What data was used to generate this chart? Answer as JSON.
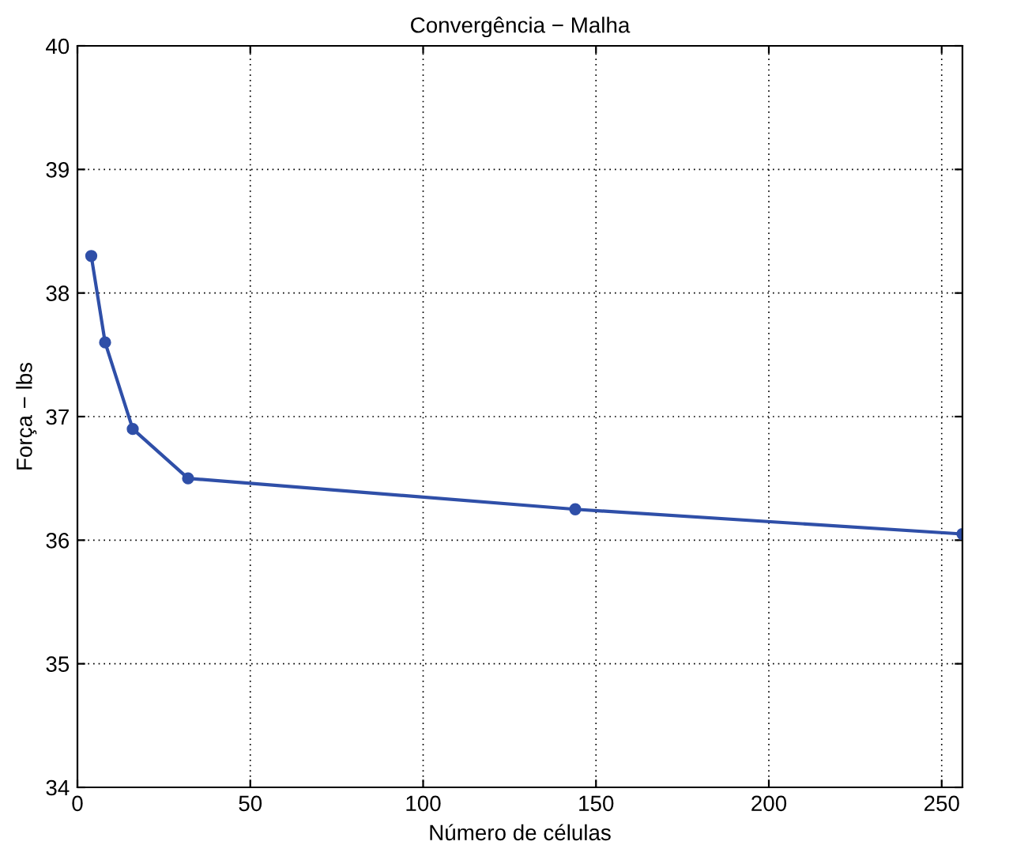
{
  "chart_data": {
    "type": "line",
    "title": "Convergência − Malha",
    "xlabel": "Número de células",
    "ylabel": "Força − lbs",
    "x": [
      4,
      8,
      16,
      32,
      144,
      256
    ],
    "series": [
      {
        "color": "#2f4fa8",
        "values": [
          38.3,
          37.6,
          36.9,
          36.5,
          36.25,
          36.05
        ]
      }
    ],
    "xlim": [
      0,
      256
    ],
    "xticks": [
      0,
      50,
      100,
      150,
      200,
      250
    ],
    "ylim": [
      34,
      40
    ],
    "yticks": [
      34,
      35,
      36,
      37,
      38,
      39,
      40
    ],
    "grid": true,
    "marker": "circle",
    "line_style": "solid"
  }
}
